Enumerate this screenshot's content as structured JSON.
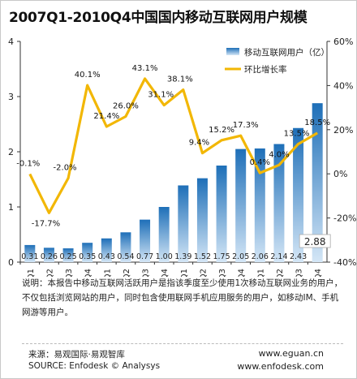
{
  "title": "2007Q1-2010Q4中国国内移动互联网用户规模",
  "colors": {
    "bar_top": "#1e6fb8",
    "bar_bottom": "#cfe3f5",
    "line": "#f2b705",
    "axis": "#333333"
  },
  "chart_data": {
    "type": "bar",
    "categories": [
      "07Q1",
      "07Q2",
      "07Q3",
      "07Q4",
      "08Q1",
      "08Q2",
      "08Q3",
      "08Q4",
      "09Q1",
      "09Q2",
      "09Q3",
      "09Q4",
      "10Q1",
      "10Q2",
      "10Q3",
      "10Q4"
    ],
    "series": [
      {
        "name": "移动互联网用户（亿）",
        "type": "bar",
        "axis": "left",
        "values": [
          0.31,
          0.26,
          0.25,
          0.35,
          0.43,
          0.54,
          0.77,
          1.0,
          1.39,
          1.52,
          1.75,
          2.05,
          2.06,
          2.14,
          2.43,
          2.88
        ],
        "labels": [
          "0.31",
          "0.26",
          "0.25",
          "0.35",
          "0.43",
          "0.54",
          "0.77",
          "1.00",
          "1.39",
          "1.52",
          "1.75",
          "2.05",
          "2.06",
          "2.14",
          "2.43",
          "2.88"
        ]
      },
      {
        "name": "环比增长率",
        "type": "line",
        "axis": "right",
        "values": [
          -0.1,
          -17.7,
          -2.0,
          40.1,
          21.4,
          26.0,
          43.1,
          31.1,
          38.1,
          9.4,
          15.2,
          17.3,
          0.4,
          4.0,
          13.5,
          18.5
        ],
        "labels": [
          "-0.1%",
          "-17.7%",
          "-2.0%",
          "40.1%",
          "21.4%",
          "26.0%",
          "43.1%",
          "31.1%",
          "38.1%",
          "9.4%",
          "15.2%",
          "17.3%",
          "0.4%",
          "4.0%",
          "13.5%",
          "18.5%"
        ]
      }
    ],
    "ylim": [
      0,
      4
    ],
    "yticks": [
      "0",
      "1",
      "2",
      "3",
      "4"
    ],
    "y2lim": [
      -40,
      60
    ],
    "y2ticks": [
      "-40%",
      "-20%",
      "0%",
      "20%",
      "40%",
      "60%"
    ],
    "legend_position": "top-right"
  },
  "note": "说明：本报告中移动互联网活跃用户是指该季度至少使用1次移动互联网业务的用户，不仅包括浏览网站的用户，同时包含使用联网手机应用服务的用户，如移动IM、手机网游等用户。",
  "source_cn": "来源：易观国际·易观智库",
  "source_en": "SOURCE: Enfodesk © Analysys",
  "website1": "www.eguan.cn",
  "website2": "www.enfodesk.com"
}
